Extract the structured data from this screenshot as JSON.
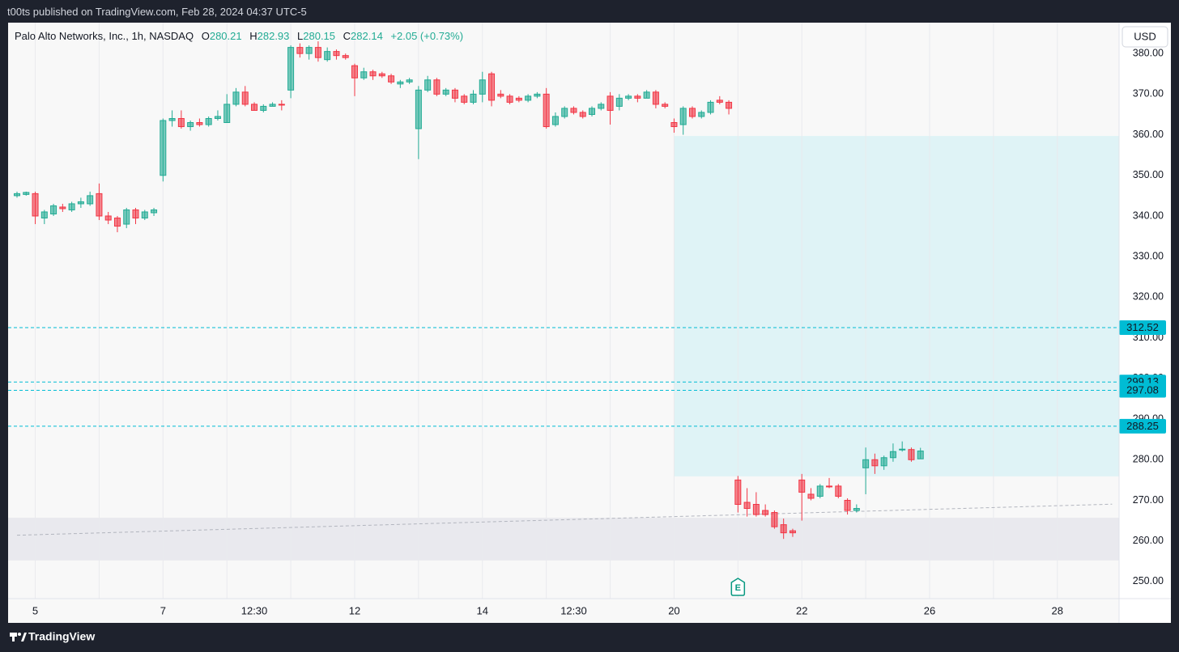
{
  "header": {
    "published": "t00ts published on TradingView.com, Feb 28, 2024 04:37 UTC-5",
    "brand": "TradingView"
  },
  "chart_data": {
    "type": "candlestick",
    "title": "Palo Alto Networks, Inc., 1h, NASDAQ",
    "legend": {
      "open_label": "O",
      "open": 280.21,
      "high_label": "H",
      "high": 282.93,
      "low_label": "L",
      "low": 280.15,
      "close_label": "C",
      "close": 282.14,
      "change": "+2.05 (+0.73%)"
    },
    "currency": "USD",
    "categories": [
      null,
      null,
      "5",
      null,
      null,
      null,
      null,
      null,
      null,
      null,
      null,
      null,
      null,
      null,
      null,
      null,
      "7",
      null,
      null,
      null,
      null,
      null,
      null,
      null,
      null,
      null,
      "12:30",
      null,
      null,
      null,
      null,
      null,
      null,
      null,
      null,
      null,
      null,
      "12",
      null,
      null,
      null,
      null,
      null,
      null,
      null,
      null,
      null,
      null,
      null,
      null,
      null,
      "14",
      null,
      null,
      null,
      null,
      null,
      null,
      null,
      null,
      null,
      "12:30",
      null,
      null,
      null,
      null,
      null,
      null,
      null,
      null,
      null,
      null,
      "20",
      null,
      null,
      null,
      null,
      null,
      null,
      null,
      null,
      null,
      null,
      null,
      null,
      null,
      "22",
      null,
      null,
      null,
      null,
      null,
      null,
      null,
      null,
      null,
      null,
      null,
      null,
      null,
      "26",
      null,
      null,
      null,
      null,
      null,
      null,
      null,
      null,
      null,
      null,
      null,
      null,
      null,
      "28",
      null,
      null,
      null,
      null,
      null,
      null
    ],
    "open": [
      345,
      345.3,
      345.5,
      339.5,
      340.5,
      342.2,
      341.5,
      343,
      343,
      345.5,
      340,
      339.5,
      338,
      341.5,
      339.5,
      340.8,
      350,
      363.5,
      364,
      362,
      363,
      362.5,
      364,
      363,
      367.5,
      370.5,
      367.5,
      366,
      367,
      367.5,
      371,
      381.5,
      380,
      381.5,
      378.5,
      380.5,
      379.5,
      377,
      374,
      375.5,
      375,
      374.5,
      372.5,
      373,
      361.5,
      371,
      373.5,
      370,
      371,
      369.5,
      368,
      370,
      375,
      370,
      369.5,
      369,
      368.5,
      369.5,
      370,
      362.5,
      364.5,
      366.5,
      365.5,
      365,
      366.5,
      369.5,
      367,
      369,
      369.5,
      369,
      370.5,
      367.5,
      363,
      362.5,
      366.5,
      364.5,
      365.5,
      368.5,
      368,
      275,
      269.5,
      269,
      267.5,
      267,
      264,
      262.5,
      275,
      271.5,
      271,
      273.5,
      273.5,
      270,
      267.5,
      278,
      280,
      278.5,
      280.5,
      282.5,
      282.5,
      280.21,
      null,
      null,
      null,
      null,
      null,
      null,
      null,
      null,
      null,
      null,
      null,
      null,
      null,
      null,
      null,
      null,
      null,
      null,
      null,
      null,
      null
    ],
    "high": [
      346,
      346,
      346,
      341.5,
      343,
      343,
      343.5,
      344.5,
      346,
      348,
      341,
      340,
      342,
      342,
      341.5,
      342,
      364,
      366,
      366,
      363.5,
      364,
      364.5,
      366,
      370,
      371.5,
      372,
      368,
      367.5,
      368,
      368.5,
      382,
      382.5,
      382,
      383,
      381.5,
      381,
      380,
      377.5,
      376.5,
      376,
      375.5,
      375,
      373.5,
      374,
      372,
      374.5,
      374,
      371.5,
      371.5,
      370,
      371,
      375.5,
      375.5,
      371,
      370,
      369.5,
      370,
      370.5,
      371.5,
      365.5,
      367,
      367,
      366,
      367,
      368,
      370.5,
      370,
      370,
      370,
      371,
      371,
      368,
      364,
      367,
      367,
      366,
      368.5,
      369.5,
      368.5,
      276,
      273,
      272,
      269,
      267.5,
      265.5,
      263,
      276.5,
      273,
      274,
      275.5,
      274,
      270.5,
      269,
      283,
      281.5,
      281,
      284,
      284.5,
      283,
      282.93,
      null,
      null,
      null,
      null,
      null,
      null,
      null,
      null,
      null,
      null,
      null,
      null,
      null,
      null,
      null,
      null,
      null,
      null,
      null,
      null,
      null
    ],
    "low": [
      344.5,
      345,
      338,
      338,
      340,
      341,
      341,
      342,
      342.5,
      339,
      338,
      336,
      337,
      338,
      339,
      340,
      348.5,
      362,
      361.5,
      361,
      362,
      362,
      363.5,
      363,
      367,
      367,
      366,
      365.5,
      367,
      366,
      369,
      379,
      378.5,
      378,
      378,
      378.5,
      378.5,
      369.5,
      373.5,
      373.5,
      374,
      372.5,
      371.5,
      372.5,
      354,
      370.5,
      369.5,
      369.5,
      368,
      367.5,
      367.5,
      368,
      367,
      369,
      367.5,
      368,
      368,
      369,
      361.5,
      362,
      364,
      365,
      364,
      364.5,
      366,
      362.5,
      366,
      368.5,
      368,
      369,
      366.5,
      366.5,
      360.5,
      360,
      364,
      364,
      365,
      367.5,
      365,
      267,
      266,
      266,
      266,
      263,
      260.5,
      261,
      265,
      270,
      270.5,
      273,
      270.5,
      266.5,
      267,
      271.5,
      276.5,
      277.5,
      279.5,
      282,
      279.5,
      280.15,
      null,
      null,
      null,
      null,
      null,
      null,
      null,
      null,
      null,
      null,
      null,
      null,
      null,
      null,
      null,
      null,
      null,
      null,
      null,
      null,
      null
    ],
    "close": [
      345.5,
      345.8,
      340,
      341,
      342.5,
      341.8,
      343,
      343.5,
      345,
      340,
      339,
      337.5,
      341.5,
      339.5,
      341,
      341.5,
      363.5,
      364,
      362,
      363,
      362.5,
      364,
      364.5,
      367.5,
      370.5,
      367.5,
      366,
      367,
      367.5,
      367.4,
      381.5,
      380,
      381.5,
      379,
      380.5,
      379.5,
      379,
      374,
      375.5,
      374.5,
      374.5,
      373,
      373,
      373.5,
      371,
      373.5,
      370,
      371,
      369,
      368,
      370,
      373.5,
      368.5,
      369.5,
      368,
      368.5,
      369.5,
      370,
      362,
      364.5,
      366.5,
      365.5,
      364.5,
      366.5,
      367.5,
      366,
      369,
      369.5,
      369,
      370.5,
      367.5,
      367,
      362,
      366.5,
      364.5,
      365.5,
      368,
      368,
      366.5,
      269,
      268,
      266.5,
      266.5,
      263.5,
      262,
      262,
      272,
      270.5,
      273.5,
      273.4,
      271,
      267.5,
      268,
      280,
      278.5,
      280.5,
      282,
      282.6,
      280,
      282.14,
      null,
      null,
      null,
      null,
      null,
      null,
      null,
      null,
      null,
      null,
      null,
      null,
      null,
      null,
      null,
      null,
      null,
      null,
      null,
      null,
      null
    ],
    "up_color": "#22ab94",
    "down_color": "#f23645",
    "ylim": [
      245.8,
      387.2
    ],
    "yticks": [
      {
        "value": 250,
        "label": "250.00"
      },
      {
        "value": 260,
        "label": "260.00"
      },
      {
        "value": 270,
        "label": "270.00"
      },
      {
        "value": 280,
        "label": "280.00"
      },
      {
        "value": 290,
        "label": "290.00"
      },
      {
        "value": 300,
        "label": "300.00"
      },
      {
        "value": 310,
        "label": "310.00"
      },
      {
        "value": 320,
        "label": "320.00"
      },
      {
        "value": 330,
        "label": "330.00"
      },
      {
        "value": 340,
        "label": "340.00"
      },
      {
        "value": 350,
        "label": "350.00"
      },
      {
        "value": 360,
        "label": "360.00"
      },
      {
        "value": 370,
        "label": "370.00"
      },
      {
        "value": 380,
        "label": "380.00"
      }
    ],
    "levels": [
      {
        "value": 312.52,
        "color": "#00bcd4"
      },
      {
        "value": 299.13,
        "color": "#00bcd4"
      },
      {
        "value": 297.08,
        "color": "#00bcd4"
      },
      {
        "value": 288.25,
        "color": "#00bcd4"
      }
    ],
    "zones": [
      {
        "start": 72,
        "top": 359.7,
        "bottom": 275.9,
        "color": "#dff3f6"
      },
      {
        "start": -1,
        "top": 265.7,
        "bottom": 255.2,
        "color": "#e9e9ee"
      }
    ],
    "trendline": {
      "x": [
        0,
        120
      ],
      "y": [
        261.4,
        269.05
      ],
      "color": "#b2b5be"
    },
    "event": {
      "label": "E",
      "index": 79,
      "color": "#089981"
    }
  }
}
